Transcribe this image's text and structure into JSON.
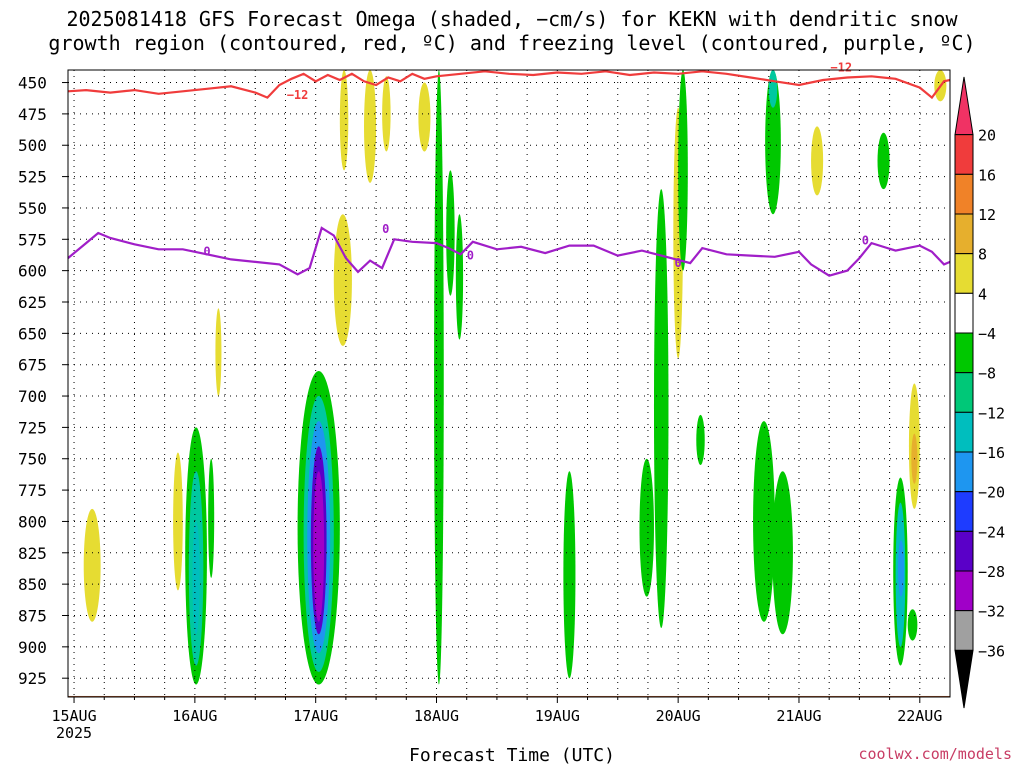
{
  "title_line1": "2025081418 GFS Forecast Omega (shaded, −cm/s) for KEKN with dendritic snow",
  "title_line2": "growth region (contoured, red, ºC) and freezing level (contoured, purple, ºC)",
  "credit": "coolwx.com/models",
  "colors": {
    "dgz_contour": "#f03c3c",
    "freezing_contour": "#a01ec8",
    "ground": "#a0522d",
    "grid": "#000000"
  },
  "chart_data": {
    "type": "heatmap",
    "xlabel": "Forecast Time (UTC)",
    "x_ticks": [
      {
        "label": "15AUG",
        "sublabel": "2025",
        "day": 0
      },
      {
        "label": "16AUG",
        "day": 1
      },
      {
        "label": "17AUG",
        "day": 2
      },
      {
        "label": "18AUG",
        "day": 3
      },
      {
        "label": "19AUG",
        "day": 4
      },
      {
        "label": "20AUG",
        "day": 5
      },
      {
        "label": "21AUG",
        "day": 6
      },
      {
        "label": "22AUG",
        "day": 7
      }
    ],
    "x_range_days": [
      -0.05,
      7.25
    ],
    "y_ticks": [
      450,
      475,
      500,
      525,
      550,
      575,
      600,
      625,
      650,
      675,
      700,
      725,
      750,
      775,
      800,
      825,
      850,
      875,
      900,
      925
    ],
    "y_range_hPa": [
      440,
      940
    ],
    "colorbar": {
      "labels": [
        "20",
        "16",
        "12",
        "8",
        "4",
        "−4",
        "−8",
        "−12",
        "−16",
        "−20",
        "−24",
        "−28",
        "−32",
        "−36"
      ],
      "colors": [
        "#f03264",
        "#f03c3c",
        "#f08228",
        "#e6af2d",
        "#e6dc32",
        "#ffffff",
        "#00c800",
        "#00c878",
        "#00bebe",
        "#1e96f0",
        "#1e3cff",
        "#5a00c8",
        "#a000c8",
        "#a0a0a0",
        "#000000"
      ]
    },
    "dgz_label": "−12",
    "freezing_label": "0",
    "dgz_contour_hPa": [
      [
        -0.05,
        457
      ],
      [
        0.1,
        456
      ],
      [
        0.3,
        458
      ],
      [
        0.5,
        456
      ],
      [
        0.7,
        459
      ],
      [
        0.9,
        457
      ],
      [
        1.1,
        455
      ],
      [
        1.3,
        453
      ],
      [
        1.5,
        458
      ],
      [
        1.6,
        462
      ],
      [
        1.7,
        452
      ],
      [
        1.8,
        447
      ],
      [
        1.9,
        443
      ],
      [
        2.0,
        449
      ],
      [
        2.1,
        444
      ],
      [
        2.2,
        448
      ],
      [
        2.3,
        443
      ],
      [
        2.4,
        449
      ],
      [
        2.5,
        452
      ],
      [
        2.6,
        446
      ],
      [
        2.7,
        449
      ],
      [
        2.8,
        443
      ],
      [
        2.9,
        447
      ],
      [
        3.0,
        445
      ],
      [
        3.2,
        443
      ],
      [
        3.4,
        441
      ],
      [
        3.6,
        443
      ],
      [
        3.8,
        444
      ],
      [
        4.0,
        442
      ],
      [
        4.2,
        443
      ],
      [
        4.4,
        441
      ],
      [
        4.6,
        444
      ],
      [
        4.8,
        442
      ],
      [
        5.0,
        443
      ],
      [
        5.2,
        441
      ],
      [
        5.4,
        443
      ],
      [
        5.6,
        446
      ],
      [
        5.8,
        449
      ],
      [
        6.0,
        452
      ],
      [
        6.2,
        448
      ],
      [
        6.4,
        446
      ],
      [
        6.6,
        445
      ],
      [
        6.8,
        447
      ],
      [
        7.0,
        454
      ],
      [
        7.1,
        462
      ],
      [
        7.2,
        449
      ],
      [
        7.25,
        448
      ]
    ],
    "freezing_level_hPa": [
      [
        -0.05,
        590
      ],
      [
        0.1,
        578
      ],
      [
        0.2,
        570
      ],
      [
        0.3,
        574
      ],
      [
        0.5,
        579
      ],
      [
        0.7,
        583
      ],
      [
        0.9,
        583
      ],
      [
        1.1,
        587
      ],
      [
        1.3,
        591
      ],
      [
        1.5,
        593
      ],
      [
        1.7,
        595
      ],
      [
        1.85,
        603
      ],
      [
        1.95,
        598
      ],
      [
        2.05,
        566
      ],
      [
        2.15,
        572
      ],
      [
        2.25,
        590
      ],
      [
        2.35,
        601
      ],
      [
        2.45,
        592
      ],
      [
        2.55,
        598
      ],
      [
        2.65,
        575
      ],
      [
        2.8,
        577
      ],
      [
        3.0,
        578
      ],
      [
        3.1,
        582
      ],
      [
        3.2,
        587
      ],
      [
        3.3,
        577
      ],
      [
        3.5,
        583
      ],
      [
        3.7,
        581
      ],
      [
        3.9,
        586
      ],
      [
        4.1,
        580
      ],
      [
        4.3,
        580
      ],
      [
        4.5,
        588
      ],
      [
        4.7,
        584
      ],
      [
        4.9,
        589
      ],
      [
        5.1,
        594
      ],
      [
        5.2,
        582
      ],
      [
        5.4,
        587
      ],
      [
        5.6,
        588
      ],
      [
        5.8,
        589
      ],
      [
        6.0,
        585
      ],
      [
        6.1,
        595
      ],
      [
        6.25,
        604
      ],
      [
        6.4,
        600
      ],
      [
        6.5,
        590
      ],
      [
        6.6,
        578
      ],
      [
        6.8,
        584
      ],
      [
        7.0,
        580
      ],
      [
        7.1,
        585
      ],
      [
        7.2,
        595
      ],
      [
        7.25,
        593
      ]
    ],
    "omega_regions": [
      {
        "t0": 0.08,
        "t1": 0.22,
        "p0": 790,
        "p1": 880,
        "value": 6
      },
      {
        "t0": 0.82,
        "t1": 0.9,
        "p0": 745,
        "p1": 855,
        "value": 6
      },
      {
        "t0": 0.92,
        "t1": 1.1,
        "p0": 725,
        "p1": 930,
        "value": -8
      },
      {
        "t0": 0.95,
        "t1": 1.07,
        "p0": 760,
        "p1": 915,
        "value": -12
      },
      {
        "t0": 0.98,
        "t1": 1.04,
        "p0": 800,
        "p1": 890,
        "value": -16
      },
      {
        "t0": 1.11,
        "t1": 1.16,
        "p0": 750,
        "p1": 845,
        "value": -8
      },
      {
        "t0": 1.17,
        "t1": 1.22,
        "p0": 630,
        "p1": 700,
        "value": 6
      },
      {
        "t0": 1.85,
        "t1": 2.2,
        "p0": 680,
        "p1": 930,
        "value": -8
      },
      {
        "t0": 1.9,
        "t1": 2.15,
        "p0": 700,
        "p1": 920,
        "value": -12
      },
      {
        "t0": 1.93,
        "t1": 2.12,
        "p0": 720,
        "p1": 905,
        "value": -18
      },
      {
        "t0": 1.96,
        "t1": 2.09,
        "p0": 740,
        "p1": 890,
        "value": -22
      },
      {
        "t0": 1.98,
        "t1": 2.07,
        "p0": 760,
        "p1": 880,
        "value": -26
      },
      {
        "t0": 2.0,
        "t1": 2.05,
        "p0": 790,
        "p1": 860,
        "value": -30
      },
      {
        "t0": 2.15,
        "t1": 2.3,
        "p0": 555,
        "p1": 660,
        "value": 6
      },
      {
        "t0": 2.2,
        "t1": 2.27,
        "p0": 440,
        "p1": 520,
        "value": 6
      },
      {
        "t0": 2.4,
        "t1": 2.5,
        "p0": 440,
        "p1": 530,
        "value": 6
      },
      {
        "t0": 2.55,
        "t1": 2.62,
        "p0": 445,
        "p1": 505,
        "value": 6
      },
      {
        "t0": 2.85,
        "t1": 2.95,
        "p0": 450,
        "p1": 505,
        "value": 6
      },
      {
        "t0": 2.98,
        "t1": 3.06,
        "p0": 440,
        "p1": 930,
        "value": -8
      },
      {
        "t0": 3.08,
        "t1": 3.15,
        "p0": 520,
        "p1": 620,
        "value": -8
      },
      {
        "t0": 3.16,
        "t1": 3.22,
        "p0": 555,
        "p1": 655,
        "value": -8
      },
      {
        "t0": 4.05,
        "t1": 4.15,
        "p0": 760,
        "p1": 925,
        "value": -8
      },
      {
        "t0": 4.68,
        "t1": 4.8,
        "p0": 750,
        "p1": 860,
        "value": -8
      },
      {
        "t0": 4.8,
        "t1": 4.92,
        "p0": 535,
        "p1": 885,
        "value": -8
      },
      {
        "t0": 4.96,
        "t1": 5.04,
        "p0": 470,
        "p1": 670,
        "value": 6
      },
      {
        "t0": 5.0,
        "t1": 5.08,
        "p0": 440,
        "p1": 600,
        "value": -8
      },
      {
        "t0": 5.15,
        "t1": 5.22,
        "p0": 715,
        "p1": 755,
        "value": -8
      },
      {
        "t0": 5.62,
        "t1": 5.8,
        "p0": 720,
        "p1": 880,
        "value": -8
      },
      {
        "t0": 5.78,
        "t1": 5.95,
        "p0": 760,
        "p1": 890,
        "value": -8
      },
      {
        "t0": 5.72,
        "t1": 5.85,
        "p0": 440,
        "p1": 555,
        "value": -8
      },
      {
        "t0": 5.75,
        "t1": 5.82,
        "p0": 440,
        "p1": 470,
        "value": -12
      },
      {
        "t0": 6.1,
        "t1": 6.2,
        "p0": 485,
        "p1": 540,
        "value": 6
      },
      {
        "t0": 6.65,
        "t1": 6.75,
        "p0": 490,
        "p1": 535,
        "value": -8
      },
      {
        "t0": 6.78,
        "t1": 6.9,
        "p0": 765,
        "p1": 915,
        "value": -8
      },
      {
        "t0": 6.8,
        "t1": 6.88,
        "p0": 785,
        "p1": 900,
        "value": -16
      },
      {
        "t0": 6.82,
        "t1": 6.87,
        "p0": 815,
        "p1": 860,
        "value": -20
      },
      {
        "t0": 6.9,
        "t1": 6.98,
        "p0": 870,
        "p1": 895,
        "value": -8
      },
      {
        "t0": 6.91,
        "t1": 7.0,
        "p0": 690,
        "p1": 790,
        "value": 6
      },
      {
        "t0": 6.93,
        "t1": 6.98,
        "p0": 730,
        "p1": 770,
        "value": 10
      },
      {
        "t0": 7.12,
        "t1": 7.22,
        "p0": 440,
        "p1": 465,
        "value": 6
      }
    ],
    "ground_hPa": 932
  }
}
